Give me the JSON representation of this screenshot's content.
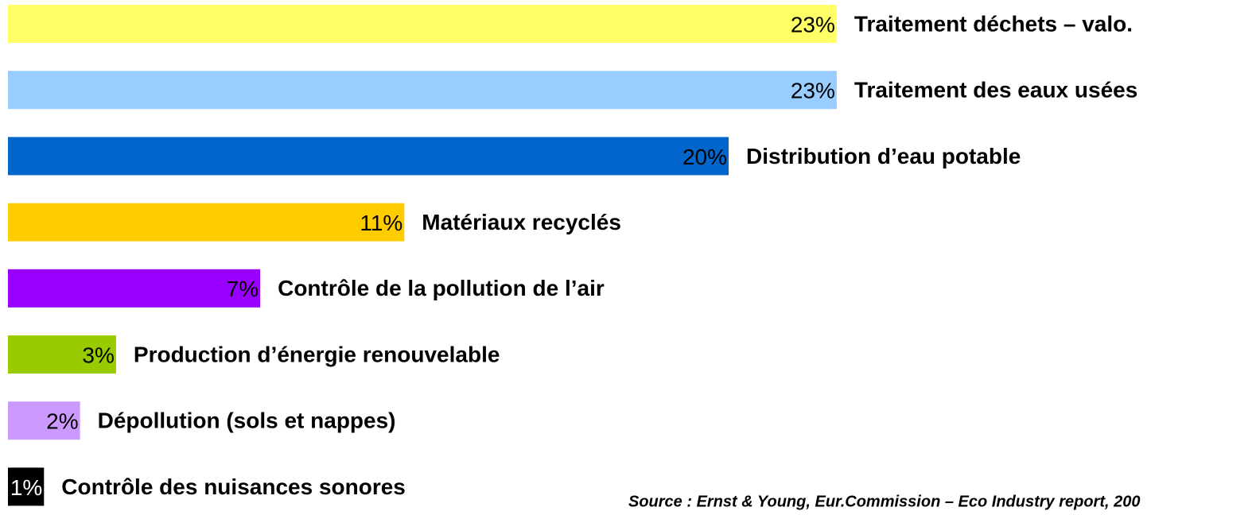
{
  "chart_data": {
    "type": "bar",
    "orientation": "horizontal",
    "categories": [
      "Traitement déchets – valo.",
      "Traitement des eaux usées",
      "Distribution d’eau potable",
      "Matériaux recyclés",
      "Contrôle de la pollution de l’air",
      "Production d’énergie renouvelable",
      "Dépollution (sols et nappes)",
      "Contrôle des nuisances sonores"
    ],
    "values": [
      23,
      23,
      20,
      11,
      7,
      3,
      2,
      1
    ],
    "value_labels": [
      "23%",
      "23%",
      "20%",
      "11%",
      "7%",
      "3%",
      "2%",
      "1%"
    ],
    "colors": [
      "#ffff66",
      "#99ccff",
      "#0066cc",
      "#ffcc00",
      "#9900ff",
      "#99cc00",
      "#cc99ff",
      "#000000"
    ],
    "source": "Source : Ernst & Young, Eur.Commission – Eco Industry report, 200"
  }
}
